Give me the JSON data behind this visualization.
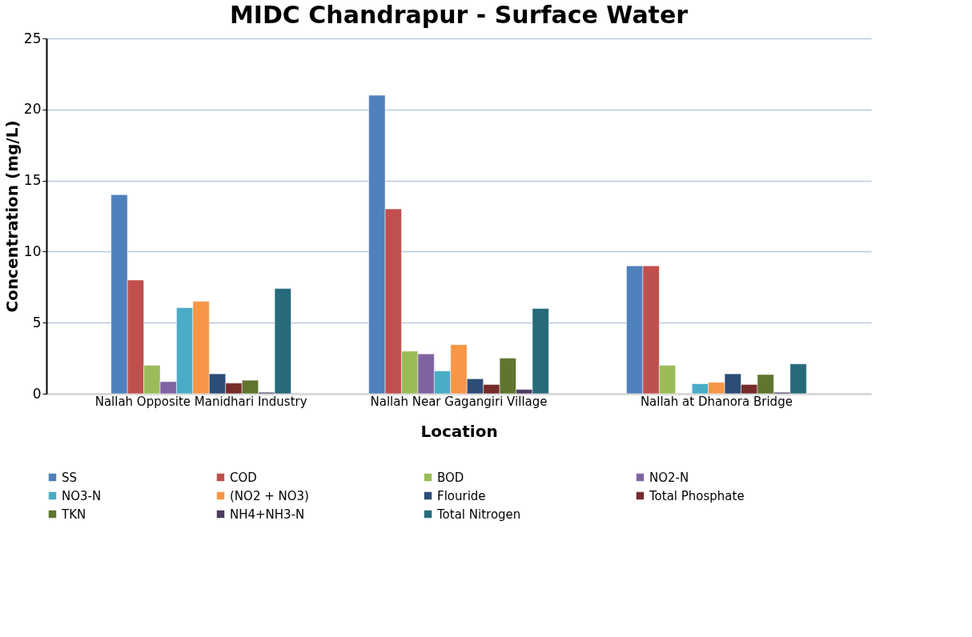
{
  "chart_data": {
    "type": "bar",
    "title": "MIDC Chandrapur - Surface Water",
    "xlabel": "Location",
    "ylabel": "Concentration (mg/L)",
    "categories": [
      "Nallah Opposite Manidhari Industry",
      "Nallah Near Gagangiri Village",
      "Nallah at Dhanora Bridge"
    ],
    "series": [
      {
        "name": "SS",
        "color": "#4f81bd",
        "values": [
          14,
          21,
          9
        ]
      },
      {
        "name": "COD",
        "color": "#c0504d",
        "values": [
          8,
          13,
          9
        ]
      },
      {
        "name": "BOD",
        "color": "#9bbb59",
        "values": [
          2,
          3,
          2
        ]
      },
      {
        "name": "NO2-N",
        "color": "#8064a2",
        "values": [
          0.85,
          2.8,
          null
        ]
      },
      {
        "name": "NO3-N",
        "color": "#4bacc6",
        "values": [
          6.05,
          1.6,
          0.7
        ]
      },
      {
        "name": "(NO2 + NO3)",
        "color": "#f79646",
        "values": [
          6.5,
          3.45,
          0.8
        ]
      },
      {
        "name": "Flouride",
        "color": "#2c4d75",
        "values": [
          1.4,
          1.05,
          1.4
        ]
      },
      {
        "name": "Total Phosphate",
        "color": "#772c2a",
        "values": [
          0.75,
          0.65,
          0.65
        ]
      },
      {
        "name": "TKN",
        "color": "#5f7530",
        "values": [
          0.95,
          2.5,
          1.35
        ]
      },
      {
        "name": "NH4+NH3-N",
        "color": "#4d3b62",
        "values": [
          0.1,
          0.3,
          0.1
        ]
      },
      {
        "name": "Total Nitrogen",
        "color": "#276a7c",
        "values": [
          7.4,
          6,
          2.1
        ]
      }
    ],
    "ylim": [
      0,
      25
    ],
    "yticks": [
      0,
      5,
      10,
      15,
      20,
      25
    ],
    "grid": "y",
    "legend": "bottom"
  }
}
